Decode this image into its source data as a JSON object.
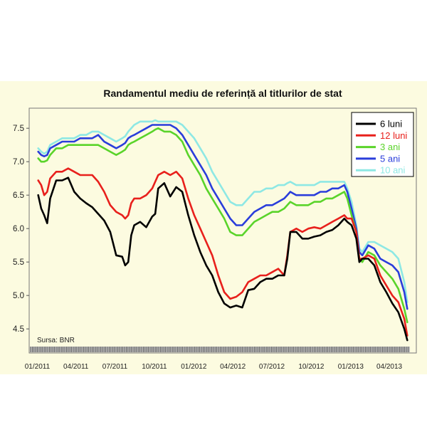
{
  "colors": {
    "background": "#fcfbe0",
    "plot_border": "#777777",
    "legend_background": "#ffffff"
  },
  "chart_data": {
    "type": "line",
    "title": "Randamentul mediu de referință al titlurilor de stat",
    "source_note": "Sursa: BNR",
    "xlabel": "",
    "ylabel": "",
    "xlim": [
      "2010-12-13",
      "2013-06-03"
    ],
    "ylim": [
      4.14,
      7.8
    ],
    "grid": false,
    "legend_position": "top-right",
    "x_ticks": [
      "2011-01-01",
      "2011-04-01",
      "2011-07-01",
      "2011-10-01",
      "2012-01-01",
      "2012-04-01",
      "2012-07-01",
      "2012-10-01",
      "2013-01-01",
      "2013-04-01"
    ],
    "x_tick_labels": [
      "01/2011",
      "04/2011",
      "07/2011",
      "10/2011",
      "01/2012",
      "04/2012",
      "07/2012",
      "10/2012",
      "01/2013",
      "04/2013"
    ],
    "y_ticks": [
      4.5,
      5.0,
      5.5,
      6.0,
      6.5,
      7.0,
      7.5
    ],
    "y_tick_labels": [
      "4.5",
      "5.0",
      "5.5",
      "6.0",
      "6.5",
      "7.0",
      "7.5"
    ],
    "x": [
      "2011-01-03",
      "2011-01-10",
      "2011-01-17",
      "2011-01-24",
      "2011-01-31",
      "2011-02-14",
      "2011-02-28",
      "2011-03-14",
      "2011-03-28",
      "2011-04-11",
      "2011-04-25",
      "2011-05-09",
      "2011-05-23",
      "2011-06-06",
      "2011-06-20",
      "2011-07-04",
      "2011-07-18",
      "2011-07-25",
      "2011-08-01",
      "2011-08-08",
      "2011-08-15",
      "2011-08-29",
      "2011-09-12",
      "2011-09-26",
      "2011-10-03",
      "2011-10-10",
      "2011-10-24",
      "2011-11-07",
      "2011-11-21",
      "2011-12-05",
      "2011-12-19",
      "2012-01-02",
      "2012-01-16",
      "2012-01-30",
      "2012-02-13",
      "2012-02-27",
      "2012-03-12",
      "2012-03-26",
      "2012-04-09",
      "2012-04-23",
      "2012-05-07",
      "2012-05-21",
      "2012-06-04",
      "2012-06-18",
      "2012-07-02",
      "2012-07-16",
      "2012-07-30",
      "2012-08-06",
      "2012-08-13",
      "2012-08-27",
      "2012-09-10",
      "2012-09-24",
      "2012-10-08",
      "2012-10-22",
      "2012-11-05",
      "2012-11-19",
      "2012-12-03",
      "2012-12-17",
      "2012-12-24",
      "2013-01-03",
      "2013-01-14",
      "2013-01-21",
      "2013-01-28",
      "2013-02-11",
      "2013-02-25",
      "2013-03-11",
      "2013-03-25",
      "2013-04-08",
      "2013-04-22",
      "2013-05-06",
      "2013-05-13"
    ],
    "series": [
      {
        "name": "6 luni",
        "color": "#000000",
        "values": [
          6.5,
          6.3,
          6.2,
          6.08,
          6.45,
          6.72,
          6.72,
          6.76,
          6.55,
          6.45,
          6.38,
          6.32,
          6.22,
          6.12,
          5.95,
          5.6,
          5.58,
          5.45,
          5.5,
          5.9,
          6.05,
          6.1,
          6.02,
          6.18,
          6.22,
          6.6,
          6.68,
          6.48,
          6.62,
          6.55,
          6.2,
          5.9,
          5.65,
          5.45,
          5.3,
          5.05,
          4.88,
          4.82,
          4.85,
          4.82,
          5.08,
          5.1,
          5.2,
          5.25,
          5.25,
          5.3,
          5.3,
          5.55,
          5.95,
          5.95,
          5.85,
          5.85,
          5.88,
          5.9,
          5.95,
          5.98,
          6.05,
          6.15,
          6.1,
          6.05,
          5.85,
          5.5,
          5.55,
          5.55,
          5.45,
          5.2,
          5.05,
          4.88,
          4.75,
          4.5,
          4.33
        ]
      },
      {
        "name": "12 luni",
        "color": "#e8201c",
        "values": [
          6.72,
          6.65,
          6.5,
          6.55,
          6.75,
          6.85,
          6.85,
          6.9,
          6.85,
          6.8,
          6.8,
          6.8,
          6.7,
          6.55,
          6.35,
          6.25,
          6.2,
          6.15,
          6.2,
          6.38,
          6.45,
          6.45,
          6.5,
          6.6,
          6.7,
          6.8,
          6.85,
          6.8,
          6.85,
          6.75,
          6.45,
          6.2,
          6.0,
          5.8,
          5.6,
          5.3,
          5.05,
          4.95,
          4.98,
          5.05,
          5.2,
          5.25,
          5.3,
          5.3,
          5.35,
          5.4,
          5.3,
          5.6,
          5.95,
          6.0,
          5.95,
          6.0,
          6.02,
          6.0,
          6.05,
          6.1,
          6.15,
          6.2,
          6.15,
          6.15,
          5.95,
          5.55,
          5.55,
          5.6,
          5.55,
          5.3,
          5.15,
          5.0,
          4.9,
          4.65,
          4.4
        ]
      },
      {
        "name": "3 ani",
        "color": "#5ad42a",
        "values": [
          7.05,
          7.0,
          7.0,
          7.02,
          7.1,
          7.2,
          7.2,
          7.25,
          7.25,
          7.25,
          7.25,
          7.25,
          7.25,
          7.2,
          7.15,
          7.1,
          7.15,
          7.18,
          7.25,
          7.28,
          7.3,
          7.35,
          7.4,
          7.45,
          7.48,
          7.5,
          7.45,
          7.45,
          7.4,
          7.3,
          7.1,
          6.95,
          6.8,
          6.6,
          6.45,
          6.3,
          6.15,
          5.95,
          5.9,
          5.9,
          6.0,
          6.1,
          6.15,
          6.2,
          6.25,
          6.25,
          6.3,
          6.35,
          6.4,
          6.35,
          6.35,
          6.35,
          6.4,
          6.4,
          6.45,
          6.45,
          6.5,
          6.55,
          6.45,
          6.2,
          5.95,
          5.55,
          5.5,
          5.65,
          5.6,
          5.45,
          5.35,
          5.25,
          5.1,
          4.8,
          4.6
        ]
      },
      {
        "name": "5 ani",
        "color": "#2a3ddb",
        "values": [
          7.15,
          7.1,
          7.08,
          7.1,
          7.2,
          7.25,
          7.3,
          7.3,
          7.3,
          7.35,
          7.35,
          7.35,
          7.4,
          7.3,
          7.25,
          7.2,
          7.25,
          7.28,
          7.35,
          7.38,
          7.4,
          7.45,
          7.5,
          7.55,
          7.55,
          7.55,
          7.55,
          7.55,
          7.5,
          7.4,
          7.25,
          7.1,
          6.95,
          6.8,
          6.6,
          6.45,
          6.3,
          6.15,
          6.05,
          6.05,
          6.15,
          6.25,
          6.3,
          6.35,
          6.35,
          6.4,
          6.45,
          6.5,
          6.55,
          6.5,
          6.5,
          6.5,
          6.5,
          6.55,
          6.55,
          6.6,
          6.6,
          6.65,
          6.55,
          6.3,
          6.0,
          5.65,
          5.6,
          5.75,
          5.7,
          5.55,
          5.5,
          5.45,
          5.35,
          5.05,
          4.8
        ]
      },
      {
        "name": "10 ani",
        "color": "#8ee8e4",
        "values": [
          7.2,
          7.15,
          7.12,
          7.15,
          7.25,
          7.3,
          7.35,
          7.35,
          7.35,
          7.4,
          7.4,
          7.45,
          7.45,
          7.4,
          7.35,
          7.3,
          7.35,
          7.38,
          7.45,
          7.5,
          7.55,
          7.6,
          7.6,
          7.6,
          7.62,
          7.6,
          7.6,
          7.6,
          7.6,
          7.55,
          7.45,
          7.35,
          7.2,
          7.05,
          6.85,
          6.7,
          6.55,
          6.4,
          6.35,
          6.35,
          6.45,
          6.55,
          6.55,
          6.6,
          6.6,
          6.65,
          6.65,
          6.68,
          6.7,
          6.65,
          6.65,
          6.65,
          6.65,
          6.7,
          6.7,
          6.7,
          6.7,
          6.7,
          6.6,
          6.4,
          6.05,
          5.7,
          5.65,
          5.8,
          5.8,
          5.75,
          5.7,
          5.65,
          5.55,
          5.2,
          4.9
        ]
      }
    ]
  }
}
